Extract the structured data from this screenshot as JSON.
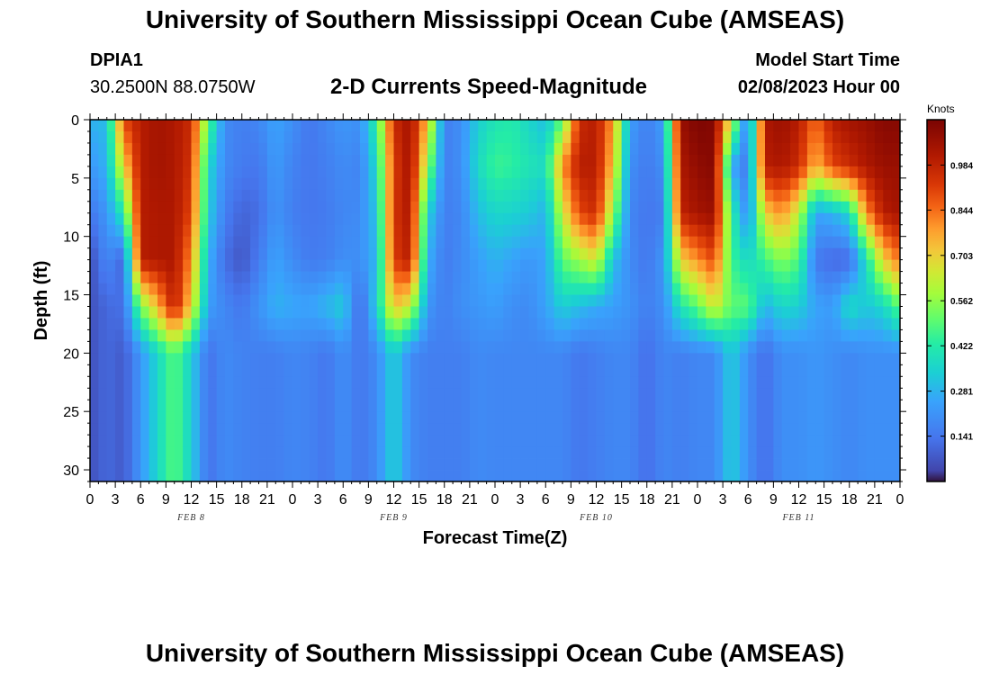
{
  "header": {
    "title": "University of Southern Mississippi Ocean Cube (AMSEAS)",
    "station_id": "DPIA1",
    "coords": "30.2500N  88.0750W",
    "plot_title": "2-D Currents Speed-Magnitude",
    "model_start_label": "Model Start Time",
    "model_start_value": "02/08/2023 Hour 00"
  },
  "footer": {
    "title": "University of Southern Mississippi Ocean Cube (AMSEAS)"
  },
  "chart_data": {
    "type": "heatmap",
    "title": "2-D Currents Speed-Magnitude",
    "xlabel": "Forecast Time(Z)",
    "ylabel": "Depth (ft)",
    "x_tick_labels": [
      "0",
      "3",
      "6",
      "9",
      "12",
      "15",
      "18",
      "21",
      "0",
      "3",
      "6",
      "9",
      "12",
      "15",
      "18",
      "21",
      "0",
      "3",
      "6",
      "9",
      "12",
      "15",
      "18",
      "21",
      "0",
      "3",
      "6",
      "9",
      "12",
      "15",
      "18",
      "21",
      "0"
    ],
    "x_range_hours": [
      0,
      96
    ],
    "day_labels": [
      {
        "label": "FEB 8",
        "hour": 12
      },
      {
        "label": "FEB 9",
        "hour": 36
      },
      {
        "label": "FEB 10",
        "hour": 60
      },
      {
        "label": "FEB 11",
        "hour": 84
      }
    ],
    "y_tick_labels": [
      "0",
      "5",
      "10",
      "15",
      "20",
      "25",
      "30"
    ],
    "y_range_ft": [
      0,
      31
    ],
    "colorbar": {
      "units": "Knots",
      "tick_labels": [
        "0.984",
        "0.844",
        "0.703",
        "0.562",
        "0.422",
        "0.281",
        "0.141"
      ],
      "tick_values": [
        0.984,
        0.844,
        0.703,
        0.562,
        0.422,
        0.281,
        0.141
      ],
      "range": [
        0.0,
        1.125
      ]
    },
    "depths_ft": [
      0,
      4,
      8,
      12,
      16,
      20,
      24,
      28,
      31
    ],
    "times_hours": [
      0,
      2,
      4,
      6,
      8,
      10,
      12,
      14,
      16,
      18,
      20,
      22,
      24,
      26,
      28,
      30,
      32,
      34,
      36,
      38,
      40,
      42,
      44,
      46,
      48,
      50,
      52,
      54,
      56,
      58,
      60,
      62,
      64,
      66,
      68,
      70,
      72,
      74,
      76,
      78,
      80,
      82,
      84,
      86,
      88,
      90,
      92,
      94,
      96
    ],
    "speed_knots": [
      [
        0.28,
        0.22,
        0.14,
        0.05,
        0.06,
        0.06
      ],
      [
        0.3,
        0.28,
        0.22,
        0.19,
        0.11,
        0.11
      ],
      [
        0.9,
        0.7,
        0.42,
        0.1,
        0.13,
        0.08
      ],
      [
        1.0,
        1.0,
        1.0,
        1.0,
        0.53,
        0.22
      ],
      [
        1.04,
        1.04,
        1.02,
        1.02,
        0.74,
        0.36
      ],
      [
        1.02,
        1.02,
        1.02,
        1.02,
        1.0,
        0.5
      ],
      [
        0.96,
        0.94,
        0.9,
        0.8,
        0.7,
        0.34
      ],
      [
        0.5,
        0.36,
        0.34,
        0.28,
        0.24,
        0.13
      ],
      [
        0.19,
        0.19,
        0.16,
        0.12,
        0.18,
        0.19
      ],
      [
        0.16,
        0.15,
        0.1,
        0.07,
        0.14,
        0.17
      ],
      [
        0.18,
        0.14,
        0.12,
        0.15,
        0.21,
        0.16
      ],
      [
        0.25,
        0.23,
        0.21,
        0.25,
        0.28,
        0.16
      ],
      [
        0.2,
        0.17,
        0.16,
        0.19,
        0.26,
        0.18
      ],
      [
        0.14,
        0.14,
        0.14,
        0.15,
        0.25,
        0.17
      ],
      [
        0.18,
        0.16,
        0.15,
        0.16,
        0.29,
        0.14
      ],
      [
        0.22,
        0.19,
        0.18,
        0.2,
        0.34,
        0.2
      ],
      [
        0.2,
        0.17,
        0.19,
        0.2,
        0.1,
        0.14
      ],
      [
        0.45,
        0.37,
        0.32,
        0.29,
        0.35,
        0.19
      ],
      [
        0.96,
        0.92,
        0.94,
        0.92,
        0.73,
        0.35
      ],
      [
        1.04,
        1.04,
        1.02,
        1.0,
        0.63,
        0.19
      ],
      [
        0.74,
        0.58,
        0.35,
        0.28,
        0.22,
        0.16
      ],
      [
        0.16,
        0.16,
        0.16,
        0.15,
        0.16,
        0.16
      ],
      [
        0.2,
        0.2,
        0.18,
        0.19,
        0.2,
        0.16
      ],
      [
        0.34,
        0.37,
        0.3,
        0.24,
        0.22,
        0.19
      ],
      [
        0.4,
        0.46,
        0.36,
        0.28,
        0.24,
        0.18
      ],
      [
        0.42,
        0.44,
        0.35,
        0.25,
        0.2,
        0.18
      ],
      [
        0.36,
        0.4,
        0.33,
        0.22,
        0.19,
        0.18
      ],
      [
        0.3,
        0.38,
        0.28,
        0.25,
        0.25,
        0.18
      ],
      [
        0.5,
        0.8,
        0.64,
        0.5,
        0.34,
        0.18
      ],
      [
        0.96,
        1.0,
        0.9,
        0.58,
        0.3,
        0.14
      ],
      [
        1.0,
        1.0,
        0.96,
        0.66,
        0.26,
        0.16
      ],
      [
        0.78,
        0.72,
        0.56,
        0.31,
        0.24,
        0.18
      ],
      [
        0.24,
        0.2,
        0.18,
        0.19,
        0.21,
        0.18
      ],
      [
        0.16,
        0.15,
        0.14,
        0.14,
        0.16,
        0.12
      ],
      [
        0.24,
        0.2,
        0.16,
        0.22,
        0.2,
        0.18
      ],
      [
        1.06,
        1.02,
        0.98,
        0.7,
        0.4,
        0.16
      ],
      [
        1.12,
        1.08,
        1.04,
        0.8,
        0.5,
        0.18
      ],
      [
        1.1,
        1.1,
        1.06,
        0.9,
        0.66,
        0.18
      ],
      [
        0.64,
        0.26,
        0.44,
        0.46,
        0.5,
        0.34
      ],
      [
        0.14,
        0.14,
        0.18,
        0.36,
        0.5,
        0.2
      ],
      [
        1.02,
        1.0,
        0.7,
        0.46,
        0.28,
        0.12
      ],
      [
        1.06,
        1.02,
        0.8,
        0.55,
        0.36,
        0.2
      ],
      [
        1.0,
        0.96,
        0.62,
        0.48,
        0.34,
        0.2
      ],
      [
        0.84,
        0.74,
        0.25,
        0.15,
        0.25,
        0.22
      ],
      [
        1.0,
        0.9,
        0.28,
        0.11,
        0.23,
        0.2
      ],
      [
        1.04,
        0.96,
        0.36,
        0.11,
        0.38,
        0.18
      ],
      [
        1.06,
        1.02,
        0.8,
        0.38,
        0.32,
        0.2
      ],
      [
        1.1,
        1.06,
        1.0,
        0.7,
        0.36,
        0.2
      ],
      [
        1.1,
        1.06,
        1.04,
        0.84,
        0.5,
        0.2
      ]
    ]
  }
}
